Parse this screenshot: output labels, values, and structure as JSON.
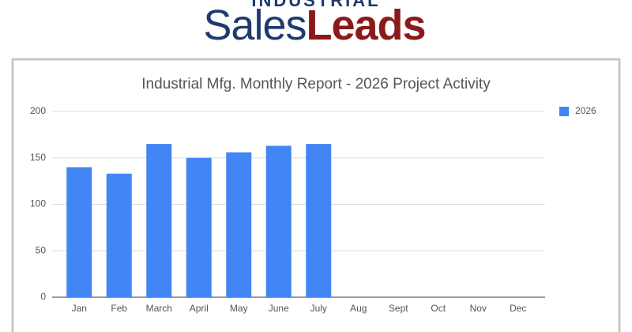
{
  "logo": {
    "top": "INDUSTRIAL",
    "sales": "Sales",
    "leads": "Leads"
  },
  "chart_data": {
    "type": "bar",
    "title": "Industrial Mfg. Monthly Report - 2026 Project Activity",
    "categories": [
      "Jan",
      "Feb",
      "March",
      "April",
      "May",
      "June",
      "July",
      "Aug",
      "Sept",
      "Oct",
      "Nov",
      "Dec"
    ],
    "series": [
      {
        "name": "2026",
        "color": "#4285f4",
        "values": [
          140,
          133,
          165,
          150,
          156,
          163,
          165,
          null,
          null,
          null,
          null,
          null
        ]
      }
    ],
    "ylim": [
      0,
      200
    ],
    "yticks": [
      0,
      50,
      100,
      150,
      200
    ],
    "grid": true,
    "legend": "right"
  }
}
